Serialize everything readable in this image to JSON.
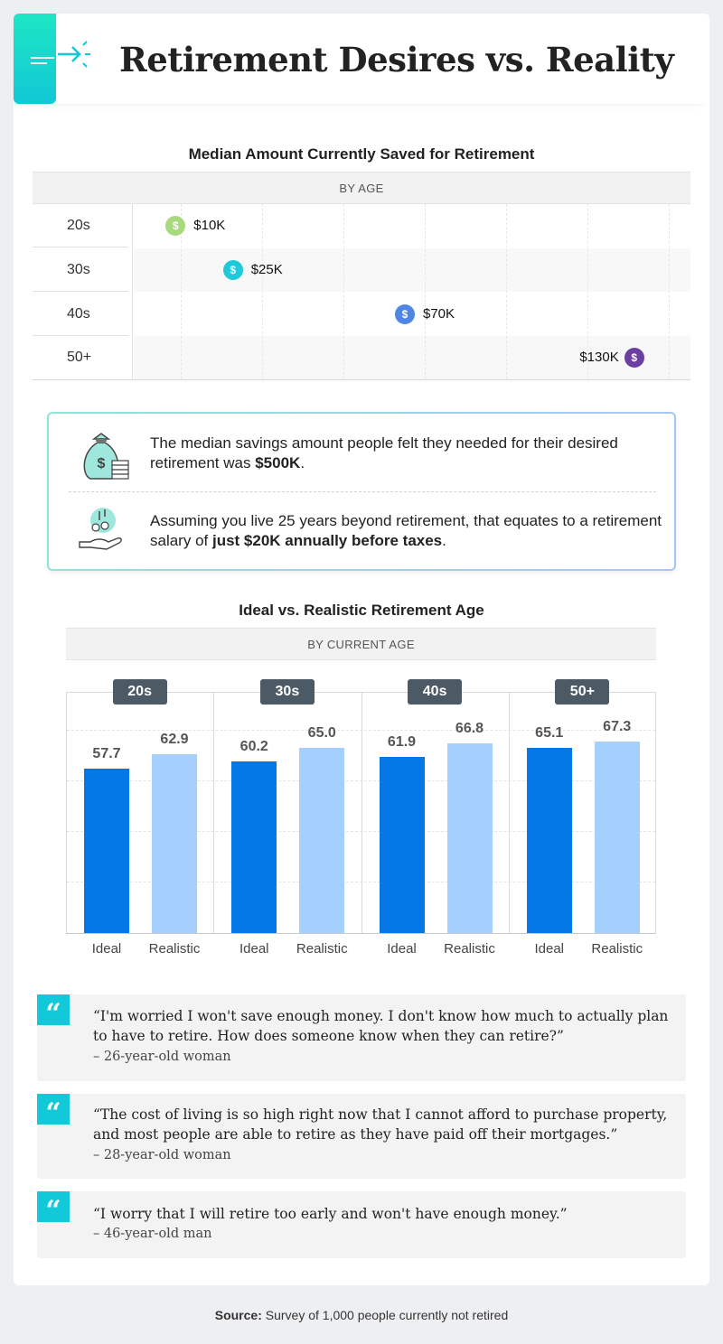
{
  "header": {
    "title": "Retirement Desires vs. Reality",
    "logo_icon": "arrow-right-icon"
  },
  "chart_data": [
    {
      "type": "scatter",
      "title": "Median Amount Currently Saved for Retirement",
      "subtitle": "BY AGE",
      "categories": [
        "20s",
        "30s",
        "40s",
        "50+"
      ],
      "values": [
        10,
        25,
        70,
        130
      ],
      "value_labels": [
        "$10K",
        "$25K",
        "$70K",
        "$130K"
      ],
      "unit": "$K",
      "xlim": [
        0,
        140
      ],
      "colors": [
        "#a8d97c",
        "#1fc9d9",
        "#4f86e3",
        "#6b3fa0"
      ],
      "icon": "dollar-coin-icon"
    },
    {
      "type": "bar",
      "title": "Ideal vs. Realistic Retirement Age",
      "subtitle": "BY CURRENT AGE",
      "categories": [
        "20s",
        "30s",
        "40s",
        "50+"
      ],
      "series": [
        {
          "name": "Ideal",
          "values": [
            57.7,
            60.2,
            61.9,
            65.1
          ],
          "color": "#0478e6"
        },
        {
          "name": "Realistic",
          "values": [
            62.9,
            65.0,
            66.8,
            67.3
          ],
          "color": "#a5cfff"
        }
      ],
      "value_labels": [
        [
          "57.7",
          "60.2",
          "61.9",
          "65.1"
        ],
        [
          "62.9",
          "65.0",
          "66.8",
          "67.3"
        ]
      ],
      "ylim": [
        0,
        80
      ],
      "grid": true
    }
  ],
  "info": {
    "items": [
      {
        "icon": "money-bag-icon",
        "text": "The median savings amount people felt they needed for their desired retirement was ",
        "bold": "$500K",
        "after": "."
      },
      {
        "icon": "hand-coins-icon",
        "text": "Assuming you live 25 years beyond retirement, that equates to a retirement salary of ",
        "bold": "just $20K annually before taxes",
        "after": "."
      }
    ]
  },
  "quotes": [
    {
      "text": "“I'm worried I won't save enough money. I don't know how much to actually plan to have to retire. How does someone know when they can retire?”",
      "attr": "– 26-year-old woman"
    },
    {
      "text": "“The cost of living is so high right now that I cannot afford to purchase property, and most people are able to retire as they have paid off their mortgages.”",
      "attr": "– 28-year-old woman"
    },
    {
      "text": "“I worry that I will retire too early and won't have enough money.”",
      "attr": "– 46-year-old man"
    }
  ],
  "quote_mark": "“",
  "source": {
    "label": "Source:",
    "text": " Survey of 1,000 people currently not retired"
  }
}
